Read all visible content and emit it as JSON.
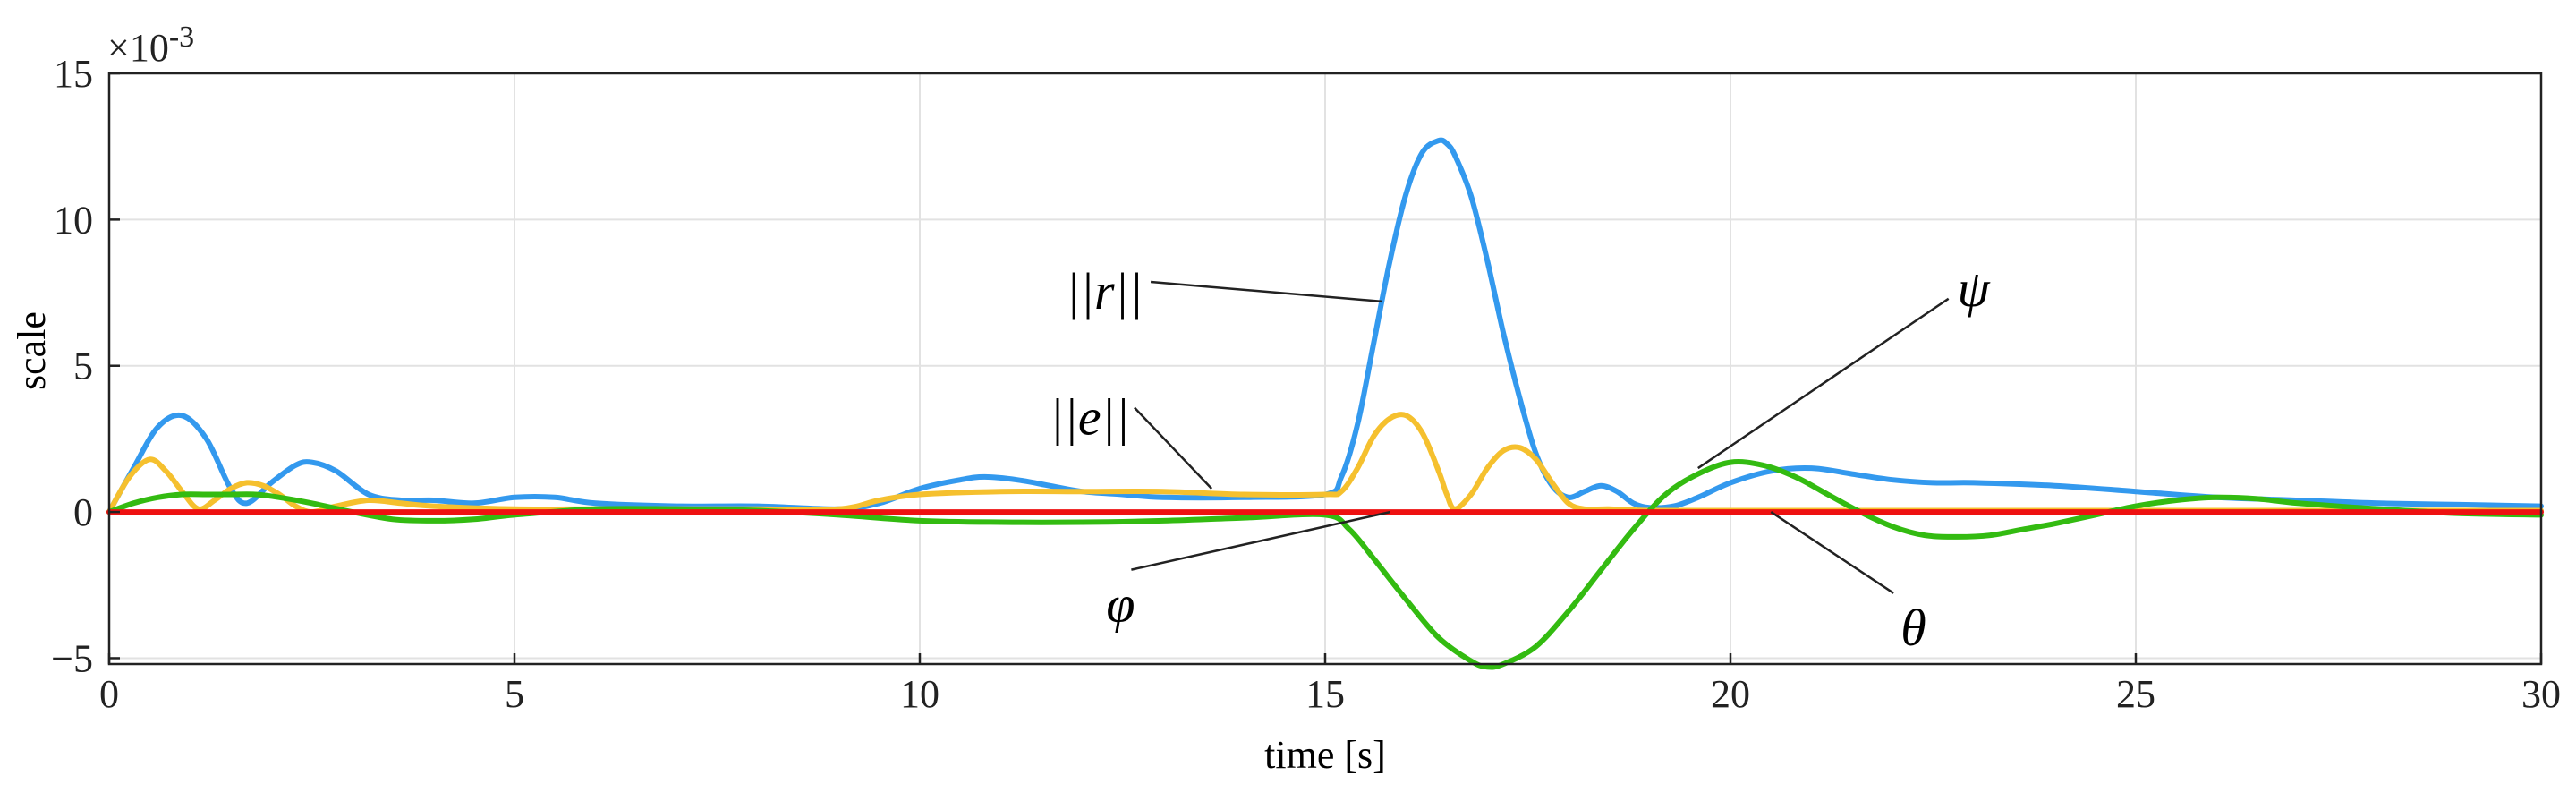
{
  "chart_data": {
    "type": "line",
    "title": "",
    "xlabel": "time [s]",
    "ylabel": "scale",
    "exponent_label": "×10",
    "exponent_power": "-3",
    "xlim": [
      0,
      30
    ],
    "ylim": [
      -5.2,
      15
    ],
    "grid": true,
    "x_ticks": [
      0,
      5,
      10,
      15,
      20,
      25,
      30
    ],
    "x_tick_labels": [
      "0",
      "5",
      "10",
      "15",
      "20",
      "25",
      "30"
    ],
    "y_ticks": [
      -5,
      0,
      5,
      10,
      15
    ],
    "y_tick_labels": [
      "−5",
      "0",
      "5",
      "10",
      "15"
    ],
    "series": [
      {
        "name": "||r||",
        "color": "#3399ee",
        "x": [
          0,
          0.3,
          0.6,
          0.9,
          1.2,
          1.5,
          1.7,
          2.0,
          2.3,
          2.5,
          2.8,
          3.2,
          3.6,
          4.0,
          4.5,
          5.0,
          5.5,
          6.0,
          7.0,
          8.0,
          9.0,
          9.5,
          10.0,
          10.5,
          10.8,
          11.2,
          11.6,
          12.0,
          12.5,
          13.0,
          14.0,
          15.0,
          15.2,
          15.4,
          15.6,
          15.8,
          16.0,
          16.2,
          16.4,
          16.5,
          16.6,
          16.8,
          17.0,
          17.2,
          17.4,
          17.6,
          17.8,
          18.0,
          18.2,
          18.4,
          18.6,
          18.8,
          19.0,
          19.3,
          19.6,
          20.0,
          20.5,
          21.0,
          21.5,
          22.0,
          22.5,
          23.0,
          24.0,
          25.0,
          26.0,
          27.0,
          28.0,
          29.0,
          30.0
        ],
        "values": [
          0,
          1.5,
          2.9,
          3.3,
          2.5,
          0.8,
          0.3,
          1.0,
          1.6,
          1.7,
          1.4,
          0.6,
          0.4,
          0.4,
          0.3,
          0.5,
          0.5,
          0.3,
          0.2,
          0.2,
          0.1,
          0.3,
          0.8,
          1.1,
          1.2,
          1.1,
          0.9,
          0.7,
          0.6,
          0.5,
          0.5,
          0.6,
          1.2,
          3.0,
          5.8,
          8.6,
          10.9,
          12.3,
          12.7,
          12.6,
          12.2,
          10.8,
          8.6,
          6.1,
          3.9,
          2.0,
          0.9,
          0.5,
          0.7,
          0.9,
          0.7,
          0.3,
          0.15,
          0.2,
          0.5,
          1.0,
          1.4,
          1.5,
          1.3,
          1.1,
          1.0,
          1.0,
          0.9,
          0.7,
          0.5,
          0.4,
          0.3,
          0.25,
          0.2
        ]
      },
      {
        "name": "||e||",
        "color": "#f5c02e",
        "x": [
          0,
          0.25,
          0.5,
          0.7,
          0.9,
          1.1,
          1.3,
          1.5,
          1.7,
          1.9,
          2.1,
          2.3,
          2.5,
          2.8,
          3.2,
          3.6,
          4.0,
          5.0,
          6.0,
          7.0,
          8.0,
          9.0,
          9.5,
          10.0,
          11.0,
          12.0,
          13.0,
          14.0,
          15.0,
          15.2,
          15.4,
          15.6,
          15.8,
          16.0,
          16.2,
          16.4,
          16.5,
          16.6,
          16.8,
          17.0,
          17.2,
          17.4,
          17.6,
          17.8,
          18.0,
          18.2,
          18.5,
          19.0,
          20.0,
          22.0,
          24.0,
          26.0,
          28.0,
          30.0
        ],
        "values": [
          0,
          1.2,
          1.8,
          1.4,
          0.7,
          0.1,
          0.4,
          0.8,
          1.0,
          0.9,
          0.6,
          0.2,
          0.0,
          0.2,
          0.4,
          0.3,
          0.2,
          0.1,
          0.1,
          0.1,
          0.1,
          0.1,
          0.4,
          0.6,
          0.7,
          0.7,
          0.7,
          0.6,
          0.6,
          0.7,
          1.5,
          2.6,
          3.2,
          3.3,
          2.7,
          1.4,
          0.6,
          0.1,
          0.6,
          1.5,
          2.1,
          2.2,
          1.8,
          1.0,
          0.3,
          0.1,
          0.1,
          0.05,
          0.05,
          0.05,
          0.05,
          0.05,
          0.05,
          0.05
        ]
      },
      {
        "name": "ψ",
        "color": "#33bb11",
        "x": [
          0,
          0.3,
          0.6,
          0.9,
          1.2,
          1.5,
          1.8,
          2.1,
          2.5,
          3.0,
          3.5,
          4.0,
          4.5,
          5.0,
          6.0,
          7.0,
          8.0,
          9.0,
          10.0,
          11.0,
          12.0,
          13.0,
          14.0,
          15.0,
          15.3,
          15.6,
          16.0,
          16.4,
          16.8,
          17.0,
          17.2,
          17.6,
          18.0,
          18.4,
          18.8,
          19.2,
          19.6,
          20.0,
          20.4,
          20.8,
          21.2,
          21.6,
          22.0,
          22.4,
          22.8,
          23.2,
          23.6,
          24.0,
          24.5,
          25.0,
          25.5,
          26.0,
          26.5,
          27.0,
          28.0,
          29.0,
          30.0
        ],
        "values": [
          0,
          0.3,
          0.5,
          0.6,
          0.6,
          0.6,
          0.6,
          0.5,
          0.3,
          0.0,
          -0.25,
          -0.3,
          -0.25,
          -0.1,
          0.1,
          0.1,
          0.05,
          -0.1,
          -0.3,
          -0.35,
          -0.35,
          -0.3,
          -0.2,
          -0.1,
          -0.6,
          -1.6,
          -3.0,
          -4.3,
          -5.1,
          -5.3,
          -5.2,
          -4.6,
          -3.4,
          -2.0,
          -0.6,
          0.6,
          1.3,
          1.7,
          1.6,
          1.2,
          0.6,
          0.0,
          -0.5,
          -0.8,
          -0.85,
          -0.8,
          -0.6,
          -0.4,
          -0.1,
          0.2,
          0.4,
          0.5,
          0.45,
          0.3,
          0.1,
          -0.05,
          -0.1
        ]
      },
      {
        "name": "θ",
        "color": "#ee1111",
        "x": [
          0,
          5,
          10,
          15,
          20,
          25,
          30
        ],
        "values": [
          0,
          0,
          0,
          0,
          0,
          0,
          0
        ]
      }
    ],
    "annotations": [
      {
        "label": "||r||",
        "label_x": 11.8,
        "label_y": 7.5,
        "point_x": 15.7,
        "point_y": 7.2
      },
      {
        "label": "||e||",
        "label_x": 11.6,
        "label_y": 3.2,
        "point_x": 13.6,
        "point_y": 0.8
      },
      {
        "label": "ψ",
        "label_x": 22.8,
        "label_y": 7.6,
        "point_x": 19.6,
        "point_y": 1.5
      },
      {
        "label": "φ",
        "label_x": 12.3,
        "label_y": -3.2,
        "point_x": 15.8,
        "point_y": 0.0
      },
      {
        "label": "θ",
        "label_x": 22.1,
        "label_y": -4.0,
        "point_x": 20.5,
        "point_y": 0.0
      }
    ]
  }
}
